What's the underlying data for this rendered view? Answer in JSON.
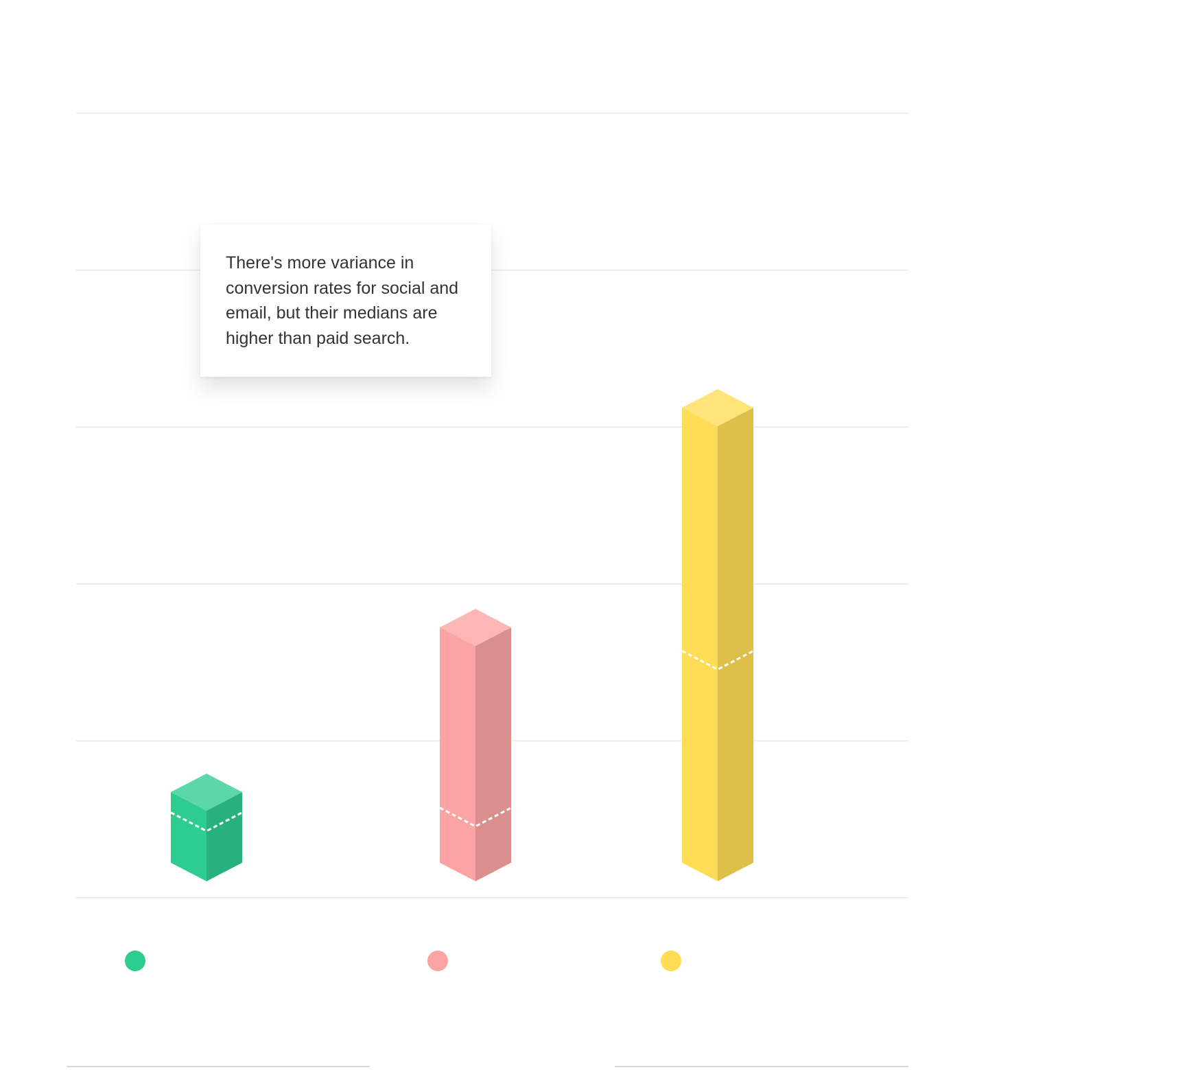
{
  "chart_data": {
    "type": "bar",
    "style": "isometric-3d",
    "categories": [
      "",
      "",
      ""
    ],
    "values": [
      0.45,
      1.5,
      2.9
    ],
    "medians": [
      0.32,
      0.35,
      1.35
    ],
    "ylim": [
      0,
      5
    ],
    "grid": true,
    "legend_position": "bottom",
    "colors": [
      "#2ecc8f",
      "#fca3a3",
      "#ffdc55"
    ],
    "annotation": "There's more variance in conversion rates for social and email, but their medians are higher than paid search."
  }
}
